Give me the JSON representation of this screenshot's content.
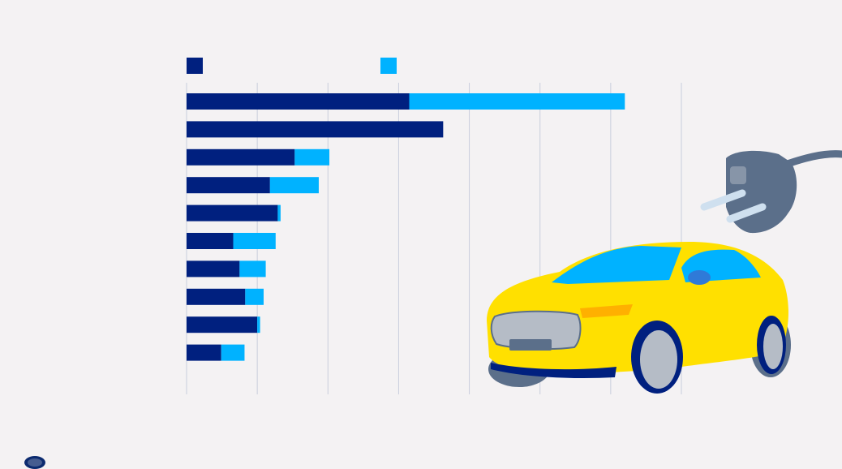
{
  "chart_data": {
    "type": "bar",
    "orientation": "horizontal",
    "stacked": true,
    "categories": [
      "",
      "",
      "",
      "",
      "",
      "",
      "",
      "",
      "",
      ""
    ],
    "series": [
      {
        "color": "#00207f",
        "values": [
          31.5,
          36.3,
          15.3,
          11.8,
          12.9,
          6.6,
          7.5,
          8.3,
          10.0,
          4.9
        ]
      },
      {
        "color": "#00b2ff",
        "values": [
          30.5,
          0,
          4.9,
          6.9,
          0.4,
          6.0,
          3.7,
          2.6,
          0.4,
          3.3
        ]
      }
    ],
    "xlim": [
      0,
      70
    ],
    "grid": true,
    "legend": "top-left"
  },
  "colors": {
    "background": "#f4f2f3",
    "gridline": "#c9cedc",
    "car_body": "#ffe000",
    "car_glass": "#00b2ff",
    "plug": "#5b6f8a"
  },
  "icons": [
    "car-illustration",
    "plug-icon",
    "dw-logo"
  ]
}
